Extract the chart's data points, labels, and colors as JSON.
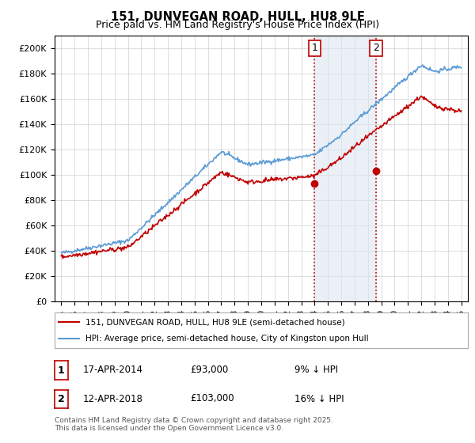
{
  "title_line1": "151, DUNVEGAN ROAD, HULL, HU8 9LE",
  "title_line2": "Price paid vs. HM Land Registry's House Price Index (HPI)",
  "ylabel": "",
  "xlabel": "",
  "ylim": [
    0,
    210000
  ],
  "yticks": [
    0,
    20000,
    40000,
    60000,
    80000,
    100000,
    120000,
    140000,
    160000,
    180000,
    200000
  ],
  "ytick_labels": [
    "£0",
    "£20K",
    "£40K",
    "£60K",
    "£80K",
    "£100K",
    "£120K",
    "£140K",
    "£160K",
    "£180K",
    "£200K"
  ],
  "hpi_color": "#5b9bd5",
  "price_color": "#c00000",
  "marker_color": "#c00000",
  "shade_color": "#dce6f1",
  "vline_color": "#c00000",
  "annotation1_label": "1",
  "annotation1_year": 2014.3,
  "annotation1_text": "17-APR-2014",
  "annotation1_price": "£93,000",
  "annotation1_note": "9% ↓ HPI",
  "annotation2_label": "2",
  "annotation2_year": 2018.3,
  "annotation2_text": "12-APR-2018",
  "annotation2_price": "£103,000",
  "annotation2_note": "16% ↓ HPI",
  "legend_line1": "151, DUNVEGAN ROAD, HULL, HU8 9LE (semi-detached house)",
  "legend_line2": "HPI: Average price, semi-detached house, City of Kingston upon Hull",
  "footer": "Contains HM Land Registry data © Crown copyright and database right 2025.\nThis data is licensed under the Open Government Licence v3.0.",
  "background_color": "#ffffff",
  "plot_background": "#ffffff",
  "grid_color": "#d0d0d0"
}
